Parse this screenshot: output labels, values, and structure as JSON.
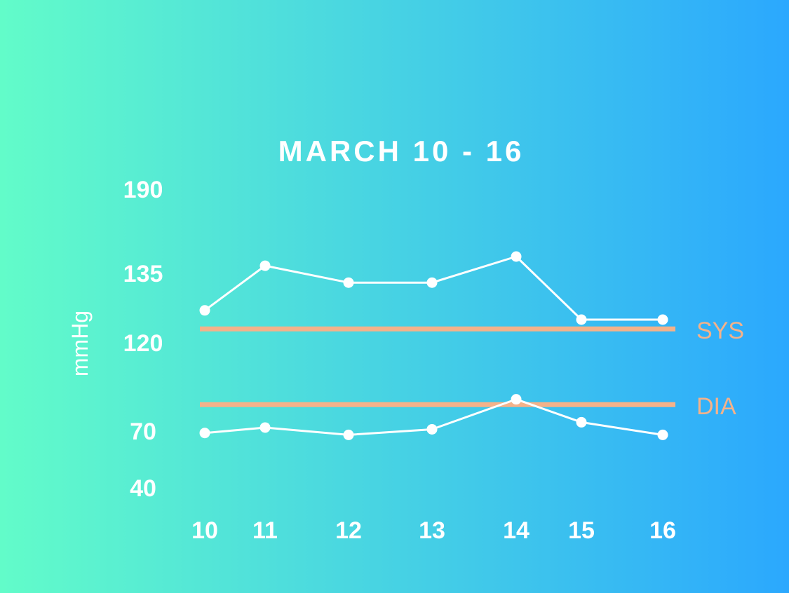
{
  "colors": {
    "background_left": "#62fcc9",
    "background_right": "#2ba8fe",
    "series_line": "#ffffff",
    "threshold_line": "#f4b28a",
    "text": "#ffffff"
  },
  "chart_data": {
    "type": "line",
    "title": "MARCH 10 - 16",
    "ylabel": "mmHg",
    "xlabel": "",
    "x": [
      10,
      11,
      12,
      13,
      14,
      15,
      16
    ],
    "x_tick_labels": [
      "10",
      "11",
      "12",
      "13",
      "14",
      "15",
      "16"
    ],
    "y_tick_labels": [
      "190",
      "135",
      "120",
      "70",
      "40"
    ],
    "grid": false,
    "legend": "none",
    "series": [
      {
        "values": [
          127,
          140,
          133,
          133,
          146,
          125,
          125
        ]
      },
      {
        "values": [
          69,
          72,
          68,
          71,
          88,
          75,
          68
        ]
      }
    ],
    "reference_lines": [
      {
        "label": "SYS",
        "value": 123
      },
      {
        "label": "DIA",
        "value": 85
      }
    ]
  }
}
